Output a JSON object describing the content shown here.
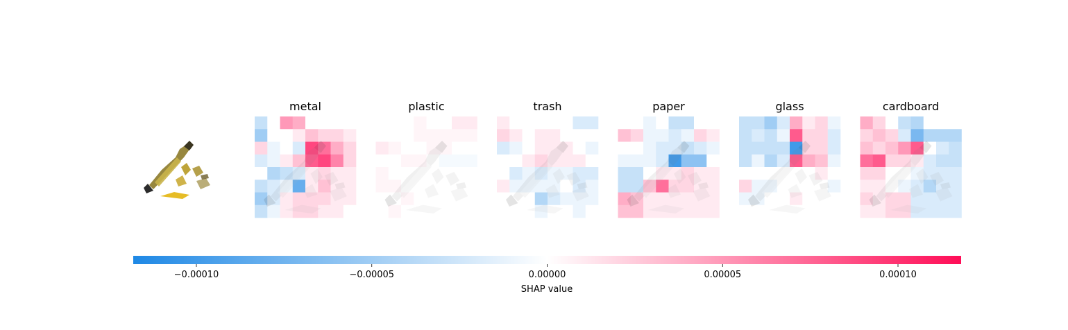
{
  "chart_data": {
    "type": "heatmap",
    "panels": [
      "metal",
      "plastic",
      "trash",
      "paper",
      "glass",
      "cardboard"
    ],
    "grid_rows": 8,
    "grid_cols": 8,
    "shap_values": {
      "metal": [
        [
          -3e-05,
          0,
          5e-05,
          4e-05,
          0,
          0,
          0,
          0
        ],
        [
          -5e-05,
          0,
          0,
          1e-05,
          3e-05,
          2e-05,
          2e-05,
          1e-05
        ],
        [
          2e-05,
          -1e-05,
          0,
          -2e-05,
          9e-05,
          7e-05,
          4e-05,
          2e-05
        ],
        [
          -2e-05,
          -1e-05,
          1e-05,
          3e-05,
          8e-05,
          9e-05,
          6e-05,
          2e-05
        ],
        [
          0,
          -4e-05,
          -3e-05,
          -2e-05,
          1e-05,
          2e-05,
          1e-05,
          1e-05
        ],
        [
          -3e-05,
          -2e-05,
          -1e-05,
          -8e-05,
          1e-05,
          3e-05,
          1e-05,
          1e-05
        ],
        [
          -5e-05,
          -2e-05,
          1e-05,
          2e-05,
          2e-05,
          2e-05,
          1e-05,
          1e-05
        ],
        [
          -3e-05,
          -1e-05,
          1e-05,
          2e-05,
          2e-05,
          1e-05,
          1e-05,
          0
        ]
      ],
      "plastic": [
        [
          0,
          0,
          0,
          5e-06,
          0,
          0,
          1e-05,
          1e-05
        ],
        [
          0,
          0,
          0,
          5e-06,
          5e-06,
          5e-06,
          5e-06,
          5e-06
        ],
        [
          1e-05,
          5e-06,
          0,
          0,
          5e-06,
          5e-06,
          0,
          0
        ],
        [
          0,
          0,
          5e-06,
          5e-06,
          0,
          -5e-06,
          -5e-06,
          -5e-06
        ],
        [
          5e-06,
          0,
          0,
          0,
          0,
          0,
          0,
          0
        ],
        [
          5e-06,
          5e-06,
          0,
          0,
          0,
          0,
          0,
          0
        ],
        [
          0,
          0,
          5e-06,
          0,
          0,
          0,
          0,
          0
        ],
        [
          0,
          5e-06,
          0,
          0,
          0,
          0,
          0,
          0
        ]
      ],
      "trash": [
        [
          1e-05,
          0,
          0,
          0,
          0,
          0,
          -2e-05,
          -2e-05
        ],
        [
          2e-05,
          1e-05,
          0,
          1e-05,
          1e-05,
          0,
          0,
          0
        ],
        [
          -2e-05,
          -1e-05,
          0,
          1e-05,
          1e-05,
          1e-05,
          0,
          -1e-05
        ],
        [
          0,
          0,
          1e-05,
          2e-05,
          1e-05,
          1e-05,
          1e-05,
          0
        ],
        [
          0,
          -2e-05,
          -1e-05,
          -2e-05,
          -1e-05,
          -1e-05,
          -2e-05,
          -2e-05
        ],
        [
          1e-05,
          -1e-05,
          -1e-05,
          -1e-05,
          -1e-05,
          0,
          -2e-05,
          -1e-05
        ],
        [
          0,
          0,
          0,
          -4e-05,
          -2e-05,
          -1e-05,
          -1e-05,
          -1e-05
        ],
        [
          0,
          0,
          0,
          -1e-05,
          0,
          0,
          -1e-05,
          0
        ]
      ],
      "paper": [
        [
          0,
          0,
          -1e-05,
          0,
          -3e-05,
          -3e-05,
          0,
          0
        ],
        [
          3e-05,
          2e-05,
          -1e-05,
          -1e-05,
          -2e-05,
          -1e-05,
          2e-05,
          1e-05
        ],
        [
          0,
          0,
          -1e-05,
          -2e-05,
          -2e-05,
          -3e-05,
          -2e-05,
          -1e-05
        ],
        [
          -1e-05,
          -1e-05,
          -1e-05,
          -2e-05,
          -0.0001,
          -6e-05,
          -6e-05,
          0
        ],
        [
          -3e-05,
          -3e-05,
          0,
          1e-05,
          1e-05,
          2e-05,
          1e-05,
          1e-05
        ],
        [
          -3e-05,
          -3e-05,
          3e-05,
          7e-05,
          2e-05,
          2e-05,
          1e-05,
          1e-05
        ],
        [
          4e-05,
          3e-05,
          1e-05,
          1e-05,
          1e-05,
          1e-05,
          1e-05,
          1e-05
        ],
        [
          3e-05,
          3e-05,
          1e-05,
          1e-05,
          1e-05,
          1e-05,
          1e-05,
          1e-05
        ]
      ],
      "glass": [
        [
          -3e-05,
          -3e-05,
          -5e-05,
          -2e-05,
          4e-05,
          1e-05,
          2e-05,
          -1e-05
        ],
        [
          -3e-05,
          -2e-05,
          -3e-05,
          -1e-05,
          8e-05,
          2e-05,
          2e-05,
          -2e-05
        ],
        [
          -3e-05,
          -3e-05,
          -3e-05,
          -3e-05,
          -0.0001,
          2e-05,
          2e-05,
          -2e-05
        ],
        [
          -3e-05,
          -1e-05,
          -4e-05,
          -2e-05,
          8e-05,
          4e-05,
          3e-05,
          -1e-05
        ],
        [
          0,
          0,
          0,
          0,
          0,
          0,
          1e-05,
          0
        ],
        [
          2e-05,
          -1e-05,
          -1e-05,
          0,
          0,
          0,
          0,
          -1e-05
        ],
        [
          -1e-05,
          -1e-05,
          0,
          0,
          1e-05,
          0,
          0,
          0
        ],
        [
          0,
          0,
          0,
          0,
          0,
          0,
          0,
          0
        ]
      ],
      "cardboard": [
        [
          4e-05,
          2e-05,
          0,
          -3e-05,
          -4e-05,
          0,
          0,
          0
        ],
        [
          2e-05,
          3e-05,
          2e-05,
          -2e-05,
          -7e-05,
          -4e-05,
          -4e-05,
          -4e-05
        ],
        [
          3e-05,
          2e-05,
          3e-05,
          5e-05,
          8e-05,
          0,
          -2e-05,
          -3e-05
        ],
        [
          7e-05,
          8e-05,
          2e-05,
          2e-05,
          1e-05,
          -2e-05,
          -3e-05,
          -3e-05
        ],
        [
          2e-05,
          2e-05,
          0,
          0,
          -1e-05,
          -2e-05,
          -2e-05,
          -2e-05
        ],
        [
          1e-05,
          1e-05,
          0,
          -1e-05,
          -2e-05,
          -4e-05,
          -2e-05,
          -2e-05
        ],
        [
          2e-05,
          1e-05,
          2e-05,
          2e-05,
          -2e-05,
          -2e-05,
          -2e-05,
          -2e-05
        ],
        [
          1e-05,
          1e-05,
          2e-05,
          2e-05,
          -2e-05,
          -2e-05,
          -2e-05,
          -2e-05
        ]
      ]
    },
    "colorbar": {
      "label": "SHAP value",
      "range": [
        -0.000118,
        0.000118
      ],
      "ticks": [
        -0.0001,
        -5e-05,
        0,
        5e-05,
        0.0001
      ],
      "tick_labels": [
        "−0.00010",
        "−0.00005",
        "0.00000",
        "0.00005",
        "0.00010"
      ],
      "negative_color": "#1E88E5",
      "positive_color": "#FF0D57",
      "center_color": "#ffffff"
    }
  }
}
